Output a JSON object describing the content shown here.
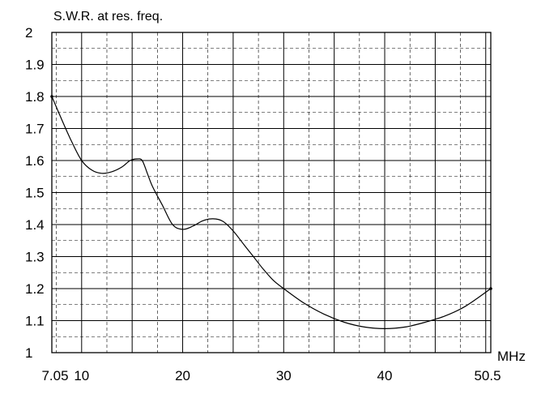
{
  "chart_data": {
    "type": "line",
    "title": "S.W.R. at res. freq.",
    "xlabel": "MHz",
    "ylabel": "",
    "xlim": [
      7.05,
      50.5
    ],
    "ylim": [
      1,
      2
    ],
    "x_tick_labels": [
      {
        "value": 7.05,
        "label": "7.05"
      },
      {
        "value": 10,
        "label": "10"
      },
      {
        "value": 20,
        "label": "20"
      },
      {
        "value": 30,
        "label": "30"
      },
      {
        "value": 40,
        "label": "40"
      },
      {
        "value": 50.5,
        "label": "50.5"
      }
    ],
    "y_tick_labels": [
      {
        "value": 1,
        "label": "1"
      },
      {
        "value": 1.1,
        "label": "1.1"
      },
      {
        "value": 1.2,
        "label": "1.2"
      },
      {
        "value": 1.3,
        "label": "1.3"
      },
      {
        "value": 1.4,
        "label": "1.4"
      },
      {
        "value": 1.5,
        "label": "1.5"
      },
      {
        "value": 1.6,
        "label": "1.6"
      },
      {
        "value": 1.7,
        "label": "1.7"
      },
      {
        "value": 1.8,
        "label": "1.8"
      },
      {
        "value": 1.9,
        "label": "1.9"
      },
      {
        "value": 2,
        "label": "2"
      }
    ],
    "grid": true,
    "series": [
      {
        "color": "#000000",
        "points": [
          [
            7.05,
            1.8
          ],
          [
            8.0,
            1.73
          ],
          [
            9.0,
            1.66
          ],
          [
            10.0,
            1.6
          ],
          [
            11.0,
            1.57
          ],
          [
            12.0,
            1.56
          ],
          [
            13.0,
            1.565
          ],
          [
            14.0,
            1.58
          ],
          [
            14.8,
            1.6
          ],
          [
            15.5,
            1.605
          ],
          [
            16.0,
            1.6
          ],
          [
            16.5,
            1.56
          ],
          [
            17.0,
            1.52
          ],
          [
            18.0,
            1.46
          ],
          [
            19.0,
            1.4
          ],
          [
            20.0,
            1.385
          ],
          [
            21.0,
            1.395
          ],
          [
            22.0,
            1.412
          ],
          [
            23.0,
            1.418
          ],
          [
            24.0,
            1.41
          ],
          [
            25.0,
            1.38
          ],
          [
            26.0,
            1.34
          ],
          [
            27.0,
            1.3
          ],
          [
            28.0,
            1.26
          ],
          [
            29.0,
            1.225
          ],
          [
            30.0,
            1.2
          ],
          [
            32.0,
            1.155
          ],
          [
            34.0,
            1.12
          ],
          [
            36.0,
            1.095
          ],
          [
            38.0,
            1.08
          ],
          [
            40.0,
            1.075
          ],
          [
            42.0,
            1.08
          ],
          [
            44.0,
            1.095
          ],
          [
            46.0,
            1.115
          ],
          [
            48.0,
            1.145
          ],
          [
            50.5,
            1.2
          ]
        ]
      }
    ]
  }
}
